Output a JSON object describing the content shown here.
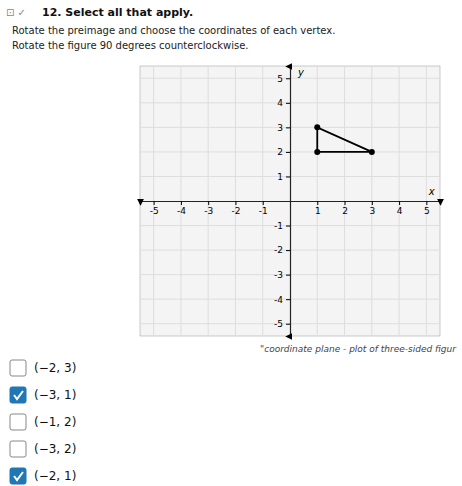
{
  "chart_data": {
    "type": "polygon",
    "title": "12. Select all that apply.",
    "x_label": "x",
    "y_label": "y",
    "x": [
      1,
      1,
      3
    ],
    "values": [
      3,
      2,
      2
    ],
    "color": "#000000",
    "marker": "circle",
    "xlim": [
      -5.5,
      5.5
    ],
    "ylim": [
      -5.5,
      5.5
    ],
    "xticks": [
      -5,
      -4,
      -3,
      -2,
      -1,
      1,
      2,
      3,
      4,
      5
    ],
    "yticks": [
      -5,
      -4,
      -3,
      -2,
      -1,
      1,
      2,
      3,
      4,
      5
    ],
    "grid": true,
    "annotations": [
      "\"coordinate plane - plot of three-sided figur"
    ]
  },
  "page": {
    "icons": "⊡  ✓",
    "instructions": [
      "Rotate the preimage and choose the coordinates of each vertex.",
      "Rotate the figure 90 degrees counterclockwise."
    ],
    "options": [
      {
        "label": "(−2, 3)",
        "checked": false
      },
      {
        "label": "(−3, 1)",
        "checked": true
      },
      {
        "label": "(−1, 2)",
        "checked": false
      },
      {
        "label": "(−3, 2)",
        "checked": false
      },
      {
        "label": "(−2, 1)",
        "checked": true
      }
    ]
  }
}
